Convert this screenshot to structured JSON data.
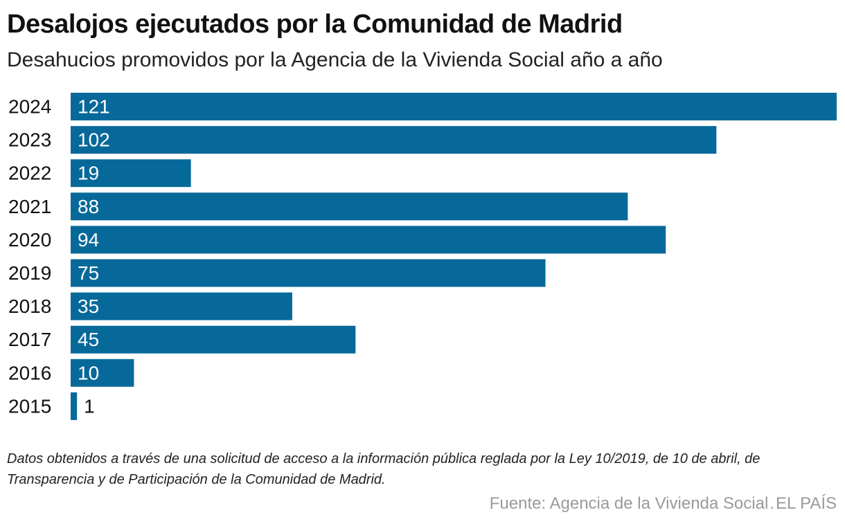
{
  "chart_data": {
    "type": "bar",
    "orientation": "horizontal",
    "title": "Desalojos ejecutados por la Comunidad de Madrid",
    "subtitle": "Desahucios promovidos por la Agencia de la Vivienda Social año a año",
    "categories": [
      "2024",
      "2023",
      "2022",
      "2021",
      "2020",
      "2019",
      "2018",
      "2017",
      "2016",
      "2015"
    ],
    "values": [
      121,
      102,
      19,
      88,
      94,
      75,
      35,
      45,
      10,
      1
    ],
    "xlim": [
      0,
      121
    ],
    "xlabel": "",
    "ylabel": "",
    "grid": false,
    "bar_color": "#07699a",
    "label_color_inside": "#ffffff",
    "label_color_outside": "#111111"
  },
  "footer": {
    "note": "Datos obtenidos a través de una solicitud de acceso a la información pública reglada por la Ley 10/2019, de 10 de abril, de Transparencia y de Participación de la Comunidad de Madrid.",
    "source": "Fuente: Agencia de la Vivienda Social",
    "separator": ".",
    "publisher": "EL PAÍS"
  }
}
